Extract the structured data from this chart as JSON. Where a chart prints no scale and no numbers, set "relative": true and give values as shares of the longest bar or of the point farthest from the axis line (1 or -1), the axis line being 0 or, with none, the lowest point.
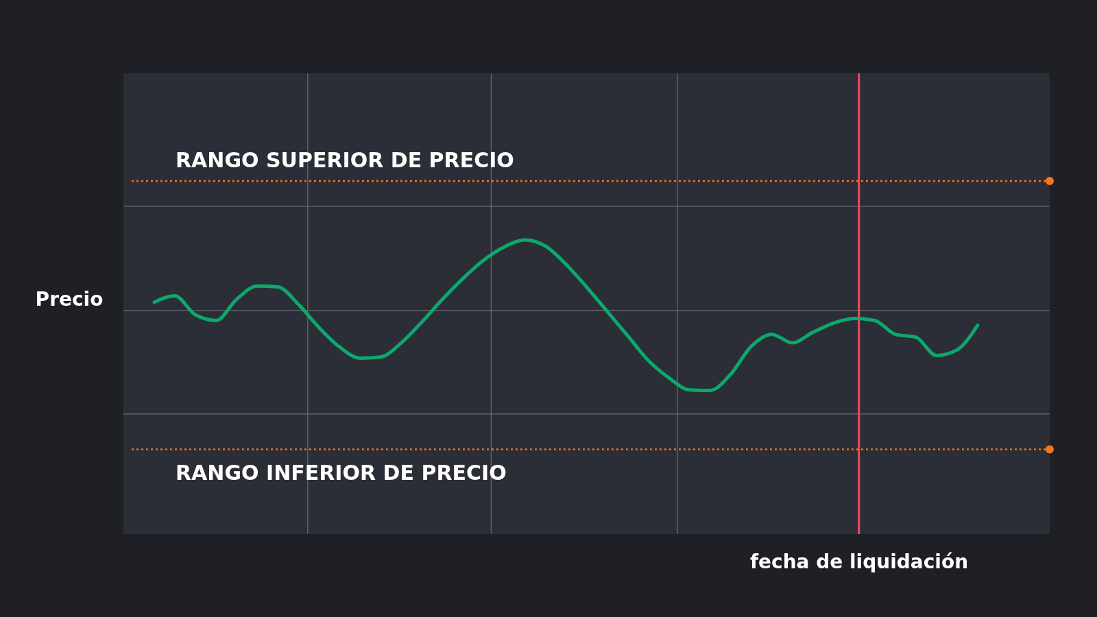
{
  "chart_data": {
    "type": "line",
    "relative": true,
    "ylabel": "Precio",
    "xlabel": "fecha de liquidación",
    "grid": true,
    "marker": "none",
    "line_style": "solid",
    "categories": [
      null,
      null,
      null,
      null,
      null,
      null,
      null,
      null,
      null,
      null,
      null,
      null,
      null,
      null,
      null,
      null,
      null,
      null,
      null,
      null,
      null,
      null,
      null,
      null,
      null,
      null,
      null,
      null,
      null,
      null,
      null,
      null,
      null,
      null,
      null,
      null,
      null,
      null,
      null,
      null,
      null,
      null,
      null,
      null,
      null
    ],
    "series": [
      {
        "color": "#0ba96c",
        "values": [
          null,
          0.788,
          0.81,
          0.745,
          0.726,
          0.798,
          0.843,
          0.84,
          0.781,
          0.702,
          0.636,
          0.598,
          0.602,
          0.65,
          0.721,
          0.798,
          0.869,
          0.931,
          0.976,
          1,
          0.979,
          0.917,
          0.84,
          0.757,
          0.674,
          0.59,
          0.531,
          0.49,
          0.488,
          0.543,
          0.638,
          0.679,
          0.65,
          0.686,
          0.717,
          0.733,
          0.726,
          0.679,
          0.669,
          0.607,
          0.626,
          0.71,
          null,
          null,
          null
        ]
      }
    ],
    "ref_lines": [
      {
        "axis": "y",
        "value": 1.2,
        "label": "RANGO SUPERIOR DE PRECIO",
        "color": "#f7761b",
        "line_style": "dotted"
      },
      {
        "axis": "y",
        "value": 0.288,
        "label": "RANGO INFERIOR DE PRECIO",
        "color": "#f7761b",
        "line_style": "dotted"
      }
    ]
  }
}
